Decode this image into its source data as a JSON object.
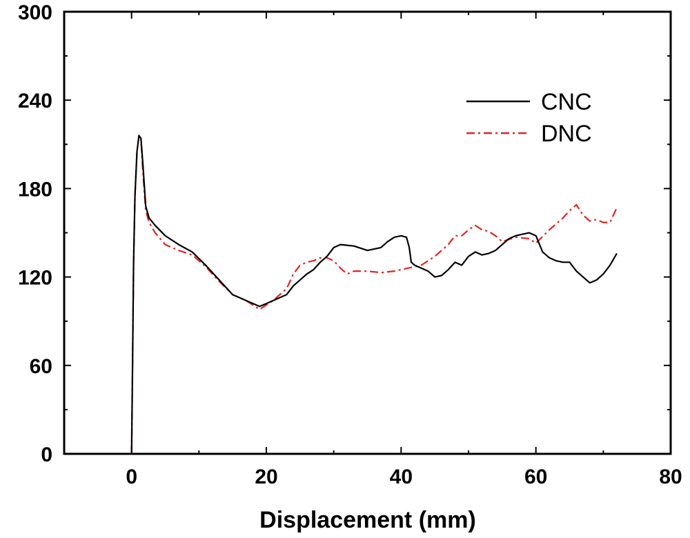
{
  "chart_data": {
    "type": "line",
    "title": "",
    "xlabel": "Displacement (mm)",
    "ylabel": "",
    "xlim": [
      -10,
      80
    ],
    "ylim": [
      0,
      300
    ],
    "x_ticks": [
      0,
      20,
      40,
      60,
      80
    ],
    "y_ticks": [
      0,
      60,
      120,
      180,
      240,
      300
    ],
    "grid": false,
    "legend_position": "top-right",
    "series": [
      {
        "name": "CNC",
        "color": "#000000",
        "dash": "solid",
        "points": [
          [
            0,
            0
          ],
          [
            0.15,
            60
          ],
          [
            0.3,
            130
          ],
          [
            0.5,
            175
          ],
          [
            0.8,
            205
          ],
          [
            1.1,
            216
          ],
          [
            1.4,
            214
          ],
          [
            1.7,
            195
          ],
          [
            2.1,
            168
          ],
          [
            2.6,
            160
          ],
          [
            3.5,
            155
          ],
          [
            5,
            148
          ],
          [
            7,
            142
          ],
          [
            9,
            137
          ],
          [
            11,
            128
          ],
          [
            13,
            118
          ],
          [
            15,
            108
          ],
          [
            17,
            104
          ],
          [
            19,
            100
          ],
          [
            20,
            102
          ],
          [
            22,
            106
          ],
          [
            23,
            108
          ],
          [
            24,
            114
          ],
          [
            25,
            118
          ],
          [
            26,
            122
          ],
          [
            27,
            125
          ],
          [
            28,
            130
          ],
          [
            29,
            134
          ],
          [
            30,
            140
          ],
          [
            31,
            142
          ],
          [
            33,
            141
          ],
          [
            35,
            138
          ],
          [
            37,
            140
          ],
          [
            38,
            144
          ],
          [
            39,
            147
          ],
          [
            40,
            148
          ],
          [
            40.8,
            147
          ],
          [
            41.2,
            140
          ],
          [
            41.5,
            130
          ],
          [
            42,
            128
          ],
          [
            43,
            126
          ],
          [
            44,
            124
          ],
          [
            45,
            120
          ],
          [
            46,
            121
          ],
          [
            47,
            125
          ],
          [
            48,
            130
          ],
          [
            49,
            128
          ],
          [
            50,
            134
          ],
          [
            51,
            137
          ],
          [
            52,
            135
          ],
          [
            53,
            136
          ],
          [
            54,
            138
          ],
          [
            55,
            142
          ],
          [
            56,
            146
          ],
          [
            57,
            148
          ],
          [
            58,
            149
          ],
          [
            59,
            150
          ],
          [
            60,
            148
          ],
          [
            61,
            137
          ],
          [
            62,
            133
          ],
          [
            63,
            131
          ],
          [
            64,
            130
          ],
          [
            65,
            130
          ],
          [
            66,
            124
          ],
          [
            67,
            120
          ],
          [
            68,
            116
          ],
          [
            69,
            118
          ],
          [
            70,
            122
          ],
          [
            71,
            128
          ],
          [
            72,
            136
          ]
        ]
      },
      {
        "name": "DNC",
        "color": "#e8211c",
        "dash": "dashdot",
        "points": [
          [
            0,
            0
          ],
          [
            0.15,
            60
          ],
          [
            0.3,
            130
          ],
          [
            0.5,
            175
          ],
          [
            0.8,
            205
          ],
          [
            1.1,
            216
          ],
          [
            1.4,
            213
          ],
          [
            1.7,
            190
          ],
          [
            2.1,
            165
          ],
          [
            2.6,
            157
          ],
          [
            3.5,
            150
          ],
          [
            5,
            142
          ],
          [
            7,
            138
          ],
          [
            9,
            135
          ],
          [
            11,
            127
          ],
          [
            13,
            117
          ],
          [
            15,
            108
          ],
          [
            17,
            104
          ],
          [
            19,
            98
          ],
          [
            20,
            101
          ],
          [
            21,
            104
          ],
          [
            22,
            108
          ],
          [
            23,
            112
          ],
          [
            24,
            122
          ],
          [
            25,
            128
          ],
          [
            26,
            130
          ],
          [
            27,
            131
          ],
          [
            28,
            133
          ],
          [
            29,
            133
          ],
          [
            30,
            131
          ],
          [
            31,
            126
          ],
          [
            32,
            122
          ],
          [
            33,
            124
          ],
          [
            35,
            124
          ],
          [
            37,
            123
          ],
          [
            39,
            124
          ],
          [
            41,
            126
          ],
          [
            43,
            128
          ],
          [
            45,
            134
          ],
          [
            47,
            142
          ],
          [
            48,
            148
          ],
          [
            49,
            148
          ],
          [
            50,
            152
          ],
          [
            51,
            155
          ],
          [
            52,
            152
          ],
          [
            53,
            151
          ],
          [
            54,
            148
          ],
          [
            55,
            144
          ],
          [
            57,
            147
          ],
          [
            59,
            146
          ],
          [
            60,
            143
          ],
          [
            62,
            152
          ],
          [
            64,
            160
          ],
          [
            65,
            165
          ],
          [
            66,
            169
          ],
          [
            67,
            162
          ],
          [
            68,
            158
          ],
          [
            69,
            159
          ],
          [
            70,
            157
          ],
          [
            71,
            157
          ],
          [
            72,
            167
          ]
        ]
      }
    ]
  }
}
